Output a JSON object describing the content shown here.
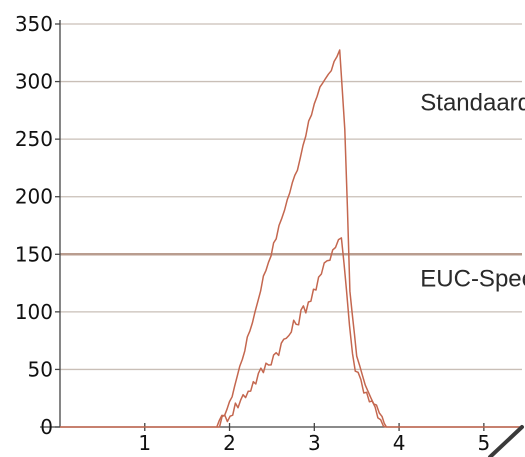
{
  "chart_data": {
    "type": "line",
    "title": "",
    "xlabel": "",
    "ylabel": "",
    "xlim": [
      0,
      5.45
    ],
    "ylim": [
      0,
      350
    ],
    "x_ticks": [
      1,
      2,
      3,
      4,
      5
    ],
    "y_ticks": [
      0,
      50,
      100,
      150,
      200,
      250,
      300,
      350
    ],
    "grid": {
      "horizontal": true,
      "vertical": false
    },
    "highlighted_gridline": 150,
    "series": [
      {
        "name": "Standaard",
        "color": "#c4674f",
        "points": [
          [
            0.0,
            0
          ],
          [
            1.85,
            0
          ],
          [
            2.0,
            20
          ],
          [
            2.15,
            60
          ],
          [
            2.3,
            100
          ],
          [
            2.4,
            130
          ],
          [
            2.55,
            165
          ],
          [
            2.65,
            190
          ],
          [
            2.8,
            225
          ],
          [
            2.9,
            255
          ],
          [
            3.0,
            280
          ],
          [
            3.1,
            300
          ],
          [
            3.2,
            310
          ],
          [
            3.3,
            328
          ],
          [
            3.36,
            260
          ],
          [
            3.42,
            120
          ],
          [
            3.5,
            60
          ],
          [
            3.6,
            35
          ],
          [
            3.7,
            20
          ],
          [
            3.8,
            10
          ],
          [
            3.85,
            0
          ],
          [
            5.45,
            0
          ]
        ]
      },
      {
        "name": "EUC-Speed",
        "color": "#c4674f",
        "points": [
          [
            1.85,
            0
          ],
          [
            2.1,
            20
          ],
          [
            2.4,
            50
          ],
          [
            2.7,
            80
          ],
          [
            2.9,
            105
          ],
          [
            3.05,
            125
          ],
          [
            3.15,
            145
          ],
          [
            3.25,
            160
          ],
          [
            3.32,
            165
          ],
          [
            3.38,
            120
          ],
          [
            3.45,
            60
          ],
          [
            3.55,
            40
          ],
          [
            3.65,
            25
          ],
          [
            3.75,
            12
          ],
          [
            3.85,
            0
          ]
        ]
      }
    ],
    "annotations": [
      {
        "text": "Standaard",
        "x": 4.25,
        "y": 275
      },
      {
        "text": "EUC-Speed",
        "x": 4.25,
        "y": 122
      }
    ]
  }
}
